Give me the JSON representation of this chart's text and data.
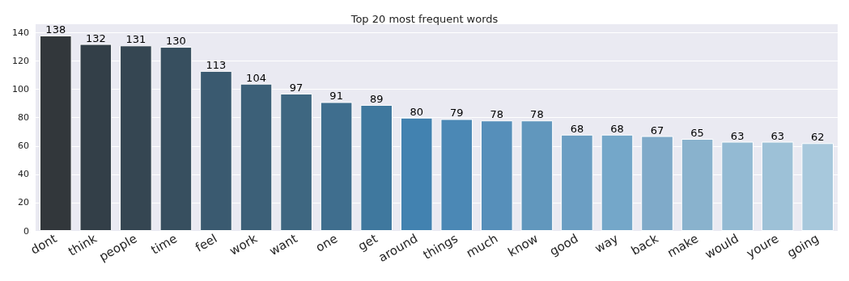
{
  "chart_data": {
    "type": "bar",
    "title": "Top 20 most frequent words",
    "categories": [
      "dont",
      "think",
      "people",
      "time",
      "feel",
      "work",
      "want",
      "one",
      "get",
      "around",
      "things",
      "much",
      "know",
      "good",
      "way",
      "back",
      "make",
      "would",
      "youre",
      "going"
    ],
    "values": [
      138,
      132,
      131,
      130,
      113,
      104,
      97,
      91,
      89,
      80,
      79,
      78,
      78,
      68,
      68,
      67,
      65,
      63,
      63,
      62
    ],
    "colors": [
      "#32373b",
      "#333f48",
      "#354652",
      "#374f5f",
      "#3a5a70",
      "#3c6078",
      "#3e6781",
      "#3f6e8e",
      "#3f789e",
      "#4282b0",
      "#4b88b5",
      "#568fba",
      "#6197bd",
      "#6b9ec3",
      "#74a7c9",
      "#7faac9",
      "#89b2cd",
      "#93bad3",
      "#9dc1d7",
      "#a7c8dc"
    ],
    "ylim": [
      0,
      146
    ],
    "yticks": [
      0,
      20,
      40,
      60,
      80,
      100,
      120,
      140
    ],
    "grid": "y",
    "data_labels": true
  }
}
